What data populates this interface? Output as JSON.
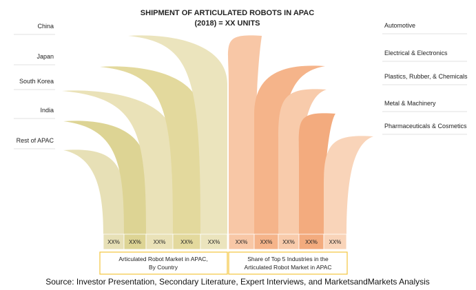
{
  "title": {
    "line1": "SHIPMENT OF ARTICULATED ROBOTS IN APAC",
    "line2": "(2018) = XX UNITS"
  },
  "chart_data": {
    "type": "area",
    "groups": [
      {
        "name": "Articulated Robot Market in APAC, By Country",
        "name_lines": [
          "Articulated Robot Market in APAC,",
          "By Country"
        ],
        "side": "left",
        "items": [
          {
            "label": "China",
            "value": "XX%",
            "color": "#ebe4bd"
          },
          {
            "label": "Japan",
            "value": "XX%",
            "color": "#e3d99d"
          },
          {
            "label": "South Korea",
            "value": "XX%",
            "color": "#eae2b8"
          },
          {
            "label": "India",
            "value": "XX%",
            "color": "#ddd494"
          },
          {
            "label": "Rest of APAC",
            "value": "XX%",
            "color": "#e7e0b6"
          }
        ]
      },
      {
        "name": "Share of Top 5 Industries in the Articulated Robot Market in APAC",
        "name_lines": [
          "Share of Top 5 Industries in the",
          "Articulated Robot Market in APAC"
        ],
        "side": "right",
        "items": [
          {
            "label": "Automotive",
            "value": "XX%",
            "color": "#f8c7a6"
          },
          {
            "label": "Electrical & Electronics",
            "value": "XX%",
            "color": "#f5b48a"
          },
          {
            "label": "Plastics, Rubber, & Chemicals",
            "value": "XX%",
            "color": "#f8cbab"
          },
          {
            "label": "Metal & Machinery",
            "value": "XX%",
            "color": "#f3ab7e"
          },
          {
            "label": "Pharmaceuticals & Cosmetics",
            "value": "XX%",
            "color": "#f9d4b9"
          }
        ]
      }
    ]
  },
  "source": "Source: Investor Presentation, Secondary Literature, Expert Interviews, and MarketsandMarkets Analysis",
  "colors": {
    "box_border": "#f2c53d",
    "guide_line": "#d9d9d9",
    "xx_divider": "#ffffff"
  }
}
